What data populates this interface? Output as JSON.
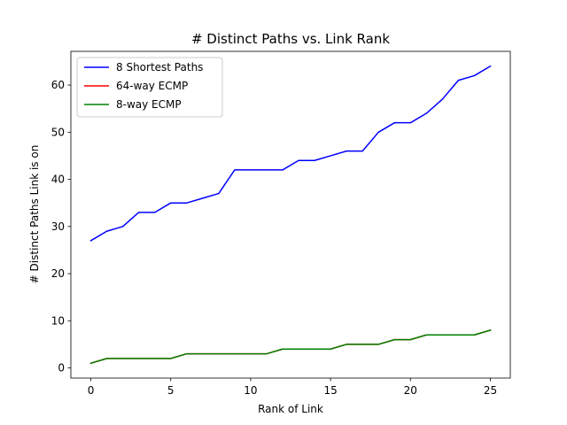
{
  "chart_data": {
    "type": "line",
    "title": "# Distinct Paths vs. Link Rank",
    "xlabel": "Rank of Link",
    "ylabel": "# Distinct Paths Link is on",
    "xlim": [
      -1.25,
      26.25
    ],
    "ylim": [
      -2.15,
      67.15
    ],
    "xticks": [
      0,
      5,
      10,
      15,
      20,
      25
    ],
    "yticks": [
      0,
      10,
      20,
      30,
      40,
      50,
      60
    ],
    "legend_position": "top-left",
    "x": [
      0,
      1,
      2,
      3,
      4,
      5,
      6,
      7,
      8,
      9,
      10,
      11,
      12,
      13,
      14,
      15,
      16,
      17,
      18,
      19,
      20,
      21,
      22,
      23,
      24,
      25
    ],
    "series": [
      {
        "name": "8 Shortest Paths",
        "color": "#0000ff",
        "values": [
          27,
          29,
          30,
          33,
          33,
          35,
          35,
          36,
          37,
          42,
          42,
          42,
          42,
          44,
          44,
          45,
          46,
          46,
          50,
          52,
          52,
          54,
          57,
          61,
          62,
          64
        ]
      },
      {
        "name": "64-way ECMP",
        "color": "#ff0000",
        "values": [
          1,
          2,
          2,
          2,
          2,
          2,
          3,
          3,
          3,
          3,
          3,
          3,
          4,
          4,
          4,
          4,
          5,
          5,
          5,
          6,
          6,
          7,
          7,
          7,
          7,
          8
        ]
      },
      {
        "name": "8-way ECMP",
        "color": "#008000",
        "values": [
          1,
          2,
          2,
          2,
          2,
          2,
          3,
          3,
          3,
          3,
          3,
          3,
          4,
          4,
          4,
          4,
          5,
          5,
          5,
          6,
          6,
          7,
          7,
          7,
          7,
          8
        ]
      }
    ]
  }
}
